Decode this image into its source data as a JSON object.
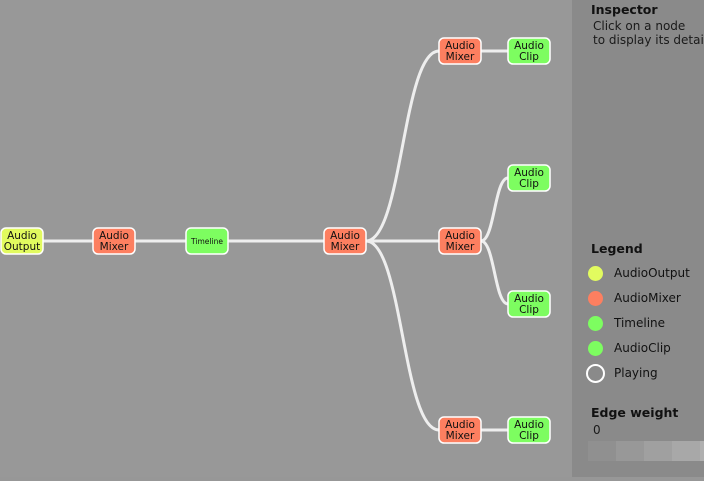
{
  "graph": {
    "nodes": [
      {
        "id": "out",
        "type": "AudioOutput",
        "label": [
          "Audio",
          "Output"
        ]
      },
      {
        "id": "m1",
        "type": "AudioMixer",
        "label": [
          "Audio",
          "Mixer"
        ]
      },
      {
        "id": "tl",
        "type": "Timeline",
        "label": [
          "Timeline"
        ]
      },
      {
        "id": "m2",
        "type": "AudioMixer",
        "label": [
          "Audio",
          "Mixer"
        ]
      },
      {
        "id": "m3",
        "type": "AudioMixer",
        "label": [
          "Audio",
          "Mixer"
        ]
      },
      {
        "id": "c1",
        "type": "AudioClip",
        "label": [
          "Audio",
          "Clip"
        ]
      },
      {
        "id": "m4",
        "type": "AudioMixer",
        "label": [
          "Audio",
          "Mixer"
        ]
      },
      {
        "id": "c2",
        "type": "AudioClip",
        "label": [
          "Audio",
          "Clip"
        ]
      },
      {
        "id": "c3",
        "type": "AudioClip",
        "label": [
          "Audio",
          "Clip"
        ]
      },
      {
        "id": "m5",
        "type": "AudioMixer",
        "label": [
          "Audio",
          "Mixer"
        ]
      },
      {
        "id": "c4",
        "type": "AudioClip",
        "label": [
          "Audio",
          "Clip"
        ]
      }
    ],
    "edges": [
      [
        "out",
        "m1"
      ],
      [
        "m1",
        "tl"
      ],
      [
        "tl",
        "m2"
      ],
      [
        "m2",
        "m3"
      ],
      [
        "m3",
        "c1"
      ],
      [
        "m2",
        "m4"
      ],
      [
        "m4",
        "c2"
      ],
      [
        "m4",
        "c3"
      ],
      [
        "m2",
        "m5"
      ],
      [
        "m5",
        "c4"
      ]
    ]
  },
  "colors": {
    "AudioOutput": "#e2fb5f",
    "AudioMixer": "#fd7f60",
    "Timeline": "#7dfd60",
    "AudioClip": "#7dfd60",
    "edge": "#eeeeee",
    "node_border": "#ffffff"
  },
  "inspector": {
    "title": "Inspector",
    "line1": "Click on a node",
    "line2": "to display its details."
  },
  "legend": {
    "title": "Legend",
    "items": [
      {
        "label": "AudioOutput",
        "color": "#e2fb5f"
      },
      {
        "label": "AudioMixer",
        "color": "#fd7f60"
      },
      {
        "label": "Timeline",
        "color": "#7dfd60"
      },
      {
        "label": "AudioClip",
        "color": "#7dfd60"
      },
      {
        "label": "Playing",
        "color": "outline"
      }
    ]
  },
  "edge_weight": {
    "title": "Edge weight",
    "min_label": "0"
  }
}
